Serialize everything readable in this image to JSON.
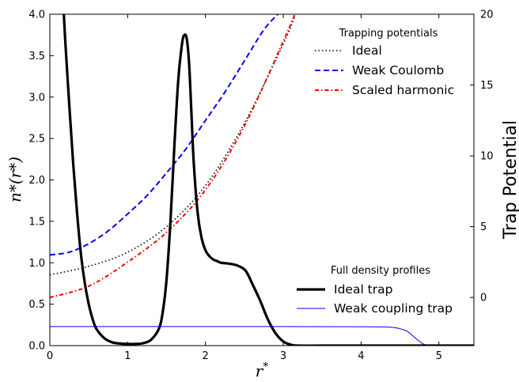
{
  "chart_data": {
    "type": "line",
    "xlabel": "r*",
    "ylabel_left": "n*(r*)",
    "ylabel_right": "Trap Potential",
    "xlim": [
      0,
      5.45
    ],
    "ylim_left": [
      0,
      4.0
    ],
    "ylim_right": [
      -3.4,
      20
    ],
    "x_ticks": [
      "0",
      "1",
      "2",
      "3",
      "4",
      "5"
    ],
    "y_ticks_left": [
      "0.0",
      "0.5",
      "1.0",
      "1.5",
      "2.0",
      "2.5",
      "3.0",
      "3.5",
      "4.0"
    ],
    "y_ticks_right": [
      "0",
      "5",
      "10",
      "15",
      "20"
    ],
    "legends": [
      {
        "title": "Trapping potentials",
        "position": "top-right",
        "entries": [
          "Ideal",
          "Weak Coulomb",
          "Scaled harmonic"
        ]
      },
      {
        "title": "Full density profiles",
        "position": "bottom-right",
        "entries": [
          "Ideal trap",
          "Weak coupling trap"
        ]
      }
    ],
    "series": [
      {
        "name": "Ideal",
        "axis": "right",
        "style": "dotted",
        "color": "#000000",
        "x": [
          0,
          0.5,
          1.0,
          1.5,
          2.0,
          2.5,
          3.0,
          3.15
        ],
        "values": [
          1.6,
          2.2,
          3.2,
          5.0,
          7.9,
          12.3,
          17.9,
          19.9
        ]
      },
      {
        "name": "Weak Coulomb",
        "axis": "right",
        "style": "dashed",
        "color": "#0000ff",
        "x": [
          0,
          0.25,
          0.5,
          0.75,
          1.0,
          1.25,
          1.5,
          1.75,
          2.0,
          2.25,
          2.5,
          2.75,
          2.93
        ],
        "values": [
          3.0,
          3.2,
          3.8,
          4.7,
          5.9,
          7.2,
          8.8,
          10.5,
          12.5,
          14.5,
          16.7,
          18.9,
          20.0
        ]
      },
      {
        "name": "Scaled harmonic",
        "axis": "right",
        "style": "dashdot",
        "color": "#ff0000",
        "x": [
          0,
          0.5,
          1.0,
          1.5,
          2.0,
          2.5,
          3.0,
          3.15
        ],
        "values": [
          0.0,
          0.8,
          2.5,
          4.6,
          7.6,
          12.1,
          18.1,
          20.0
        ]
      },
      {
        "name": "Ideal trap",
        "axis": "left",
        "style": "solid-thick",
        "color": "#000000",
        "x": [
          0.18,
          0.2,
          0.25,
          0.3,
          0.35,
          0.4,
          0.45,
          0.5,
          0.55,
          0.6,
          0.7,
          0.8,
          0.9,
          1.0,
          1.1,
          1.2,
          1.3,
          1.4,
          1.45,
          1.5,
          1.55,
          1.6,
          1.65,
          1.7,
          1.73,
          1.76,
          1.79,
          1.82,
          1.85,
          1.9,
          1.95,
          2.0,
          2.05,
          2.1,
          2.15,
          2.2,
          2.3,
          2.4,
          2.5,
          2.55,
          2.6,
          2.7,
          2.8,
          2.9,
          3.0,
          3.1,
          3.2,
          3.5,
          4.0,
          4.5,
          5.0,
          5.45
        ],
        "values": [
          4.0,
          3.65,
          2.9,
          2.2,
          1.6,
          1.1,
          0.75,
          0.5,
          0.32,
          0.2,
          0.09,
          0.04,
          0.025,
          0.02,
          0.02,
          0.03,
          0.07,
          0.2,
          0.4,
          0.8,
          1.5,
          2.4,
          3.2,
          3.65,
          3.75,
          3.7,
          3.4,
          2.8,
          2.2,
          1.6,
          1.3,
          1.15,
          1.08,
          1.04,
          1.02,
          1.0,
          0.99,
          0.97,
          0.92,
          0.85,
          0.75,
          0.55,
          0.32,
          0.15,
          0.05,
          0.01,
          0.0,
          0.0,
          0.0,
          0.0,
          0.0,
          0.0
        ]
      },
      {
        "name": "Weak coupling trap",
        "axis": "left",
        "style": "solid-thin",
        "color": "#0000ff",
        "x": [
          0,
          1.0,
          2.0,
          3.0,
          4.0,
          4.3,
          4.45,
          4.55,
          4.6,
          4.65,
          4.7,
          4.75,
          4.8,
          4.85,
          4.9,
          5.45
        ],
        "values": [
          0.23,
          0.23,
          0.23,
          0.23,
          0.228,
          0.225,
          0.215,
          0.19,
          0.17,
          0.13,
          0.09,
          0.05,
          0.02,
          0.005,
          0.0,
          0.0
        ]
      }
    ]
  }
}
